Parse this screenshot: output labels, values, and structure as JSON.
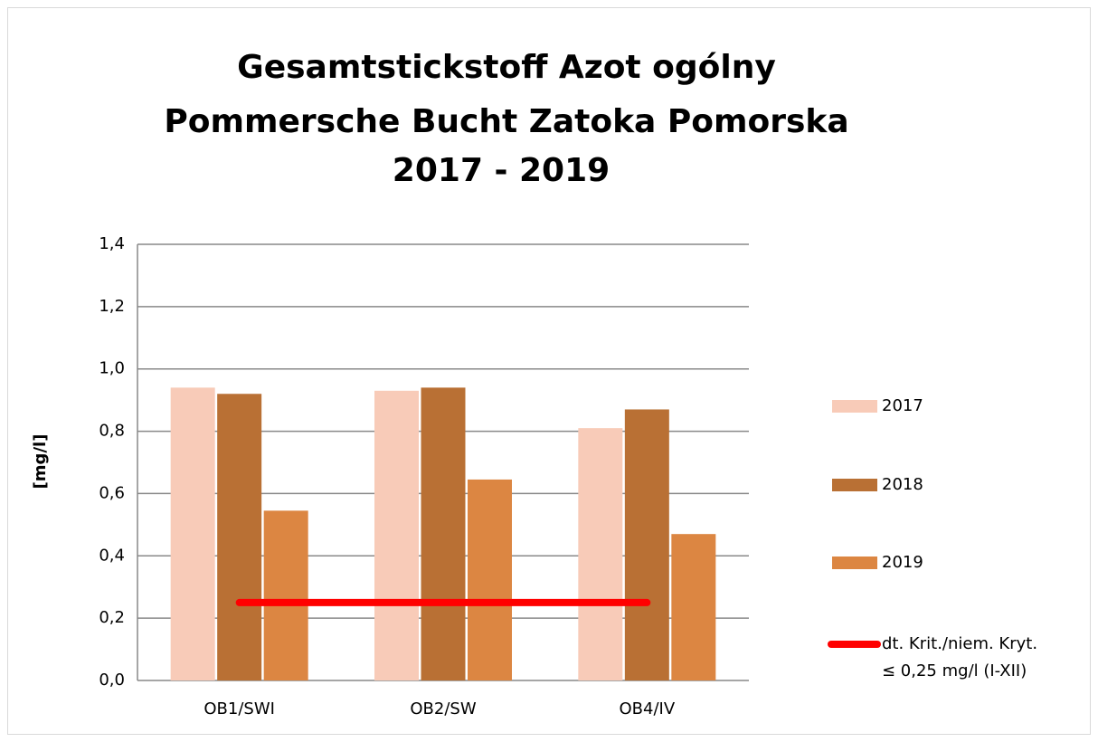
{
  "chart_data": {
    "type": "bar",
    "title": [
      "Gesamtstickstoff  Azot ogólny",
      "Pommersche Bucht   Zatoka Pomorska",
      "2017 - 2019"
    ],
    "y_label": "[mg/l]",
    "categories": [
      "OB1/SWI",
      "OB2/SW",
      "OB4/IV"
    ],
    "series": [
      {
        "name": "2017",
        "color": "#f8cbb8",
        "values": [
          0.94,
          0.93,
          0.81
        ]
      },
      {
        "name": "2018",
        "color": "#b97034",
        "values": [
          0.92,
          0.94,
          0.87
        ]
      },
      {
        "name": "2019",
        "color": "#dc8642",
        "values": [
          0.545,
          0.645,
          0.47
        ]
      },
      {
        "name": "dt. Krit./niem. Kryt.\n≤ 0,25 mg/l (I-XII)",
        "type": "line",
        "color": "#ff0000",
        "values": [
          0.25,
          0.25,
          0.25
        ]
      }
    ],
    "ylim": [
      0,
      1.4
    ],
    "yticks": [
      {
        "value": 0,
        "label": "0,0"
      },
      {
        "value": 0.2,
        "label": "0,2"
      },
      {
        "value": 0.4,
        "label": "0,4"
      },
      {
        "value": 0.6,
        "label": "0,6"
      },
      {
        "value": 0.8,
        "label": "0,8"
      },
      {
        "value": 1.0,
        "label": "1,0"
      },
      {
        "value": 1.2,
        "label": "1,2"
      },
      {
        "value": 1.4,
        "label": "1,4"
      }
    ],
    "grid": true,
    "legend": "right"
  }
}
